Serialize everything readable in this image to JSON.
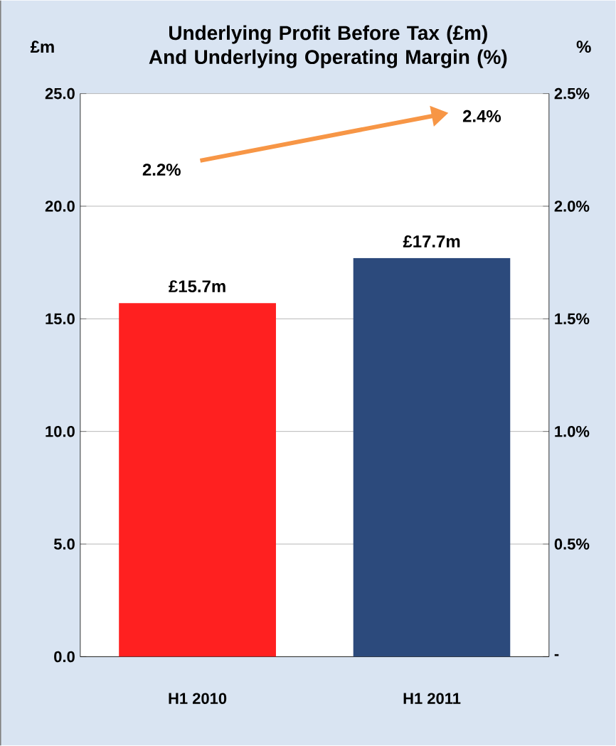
{
  "chart_data": {
    "type": "bar",
    "title": "Underlying Profit Before Tax (£m) And Underlying Operating Margin (%)",
    "ylabel": "£m",
    "y2label": "%",
    "categories": [
      "H1 2010",
      "H1 2011"
    ],
    "series": [
      {
        "colors": [
          "#ff2020",
          "#2c4a7c"
        ],
        "values": [
          15.7,
          17.7
        ],
        "value_labels": [
          "£15.7m",
          "£17.7m"
        ]
      },
      {
        "type": "line",
        "axis": "y2",
        "color": "#f79646",
        "values": [
          2.2,
          2.4
        ],
        "value_labels": [
          "2.2%",
          "2.4%"
        ]
      }
    ],
    "ylim": [
      0,
      25
    ],
    "yticks": [
      {
        "value": 0,
        "label": "0.0"
      },
      {
        "value": 5,
        "label": "5.0"
      },
      {
        "value": 10,
        "label": "10.0"
      },
      {
        "value": 15,
        "label": "15.0"
      },
      {
        "value": 20,
        "label": "20.0"
      },
      {
        "value": 25,
        "label": "25.0"
      }
    ],
    "y2lim": [
      0,
      2.5
    ],
    "y2ticks": [
      {
        "value": 0,
        "label": "-"
      },
      {
        "value": 0.5,
        "label": "0.5%"
      },
      {
        "value": 1,
        "label": "1.0%"
      },
      {
        "value": 1.5,
        "label": "1.5%"
      },
      {
        "value": 2,
        "label": "2.0%"
      },
      {
        "value": 2.5,
        "label": "2.5%"
      }
    ],
    "grid": "y"
  }
}
